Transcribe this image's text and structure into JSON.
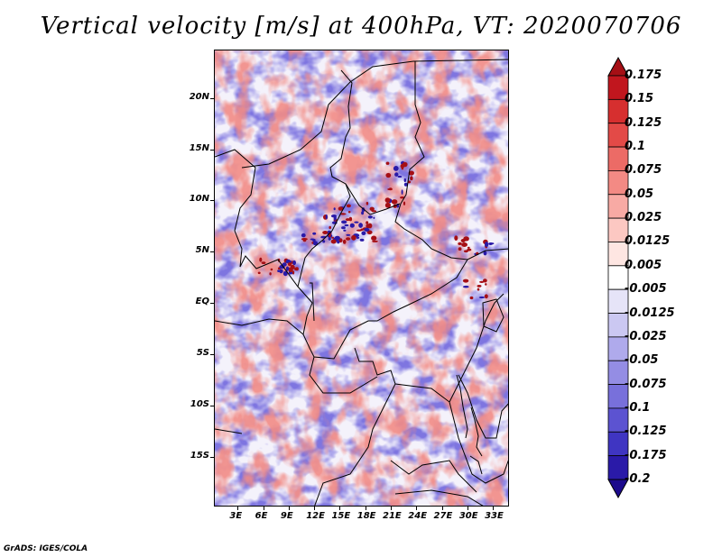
{
  "title": "Vertical velocity [m/s] at 400hPa, VT: 2020070706",
  "credit": "GrADS: IGES/COLA",
  "map": {
    "lat_labels": [
      "20N",
      "15N",
      "10N",
      "5N",
      "EQ",
      "5S",
      "10S",
      "15S"
    ],
    "lat_values": [
      20,
      15,
      10,
      5,
      0,
      -5,
      -10,
      -15
    ],
    "lon_labels": [
      "3E",
      "6E",
      "9E",
      "12E",
      "15E",
      "18E",
      "21E",
      "24E",
      "27E",
      "30E",
      "33E"
    ],
    "lon_values": [
      3,
      6,
      9,
      12,
      15,
      18,
      21,
      24,
      27,
      30,
      33
    ],
    "lat_range": [
      -19.8,
      24.7
    ],
    "lon_range": [
      0.2,
      34.9
    ]
  },
  "colorbar": {
    "levels": [
      "0.175",
      "0.15",
      "0.125",
      "0.1",
      "0.075",
      "0.05",
      "0.025",
      "0.0125",
      "0.005",
      "-0.005",
      "-0.0125",
      "-0.025",
      "-0.05",
      "-0.075",
      "-0.1",
      "-0.125",
      "-0.175",
      "-0.2"
    ],
    "colors": [
      "#a50f15",
      "#c1161e",
      "#d62f2f",
      "#e34a47",
      "#ec6b66",
      "#f38a84",
      "#f8aaa4",
      "#fcc8c2",
      "#fee6e2",
      "#ffffff",
      "#e6e4f8",
      "#cbc8f2",
      "#afaaec",
      "#948de4",
      "#7870db",
      "#5c53d1",
      "#3f35c2",
      "#2a1aa8",
      "#1c0a8c"
    ]
  }
}
